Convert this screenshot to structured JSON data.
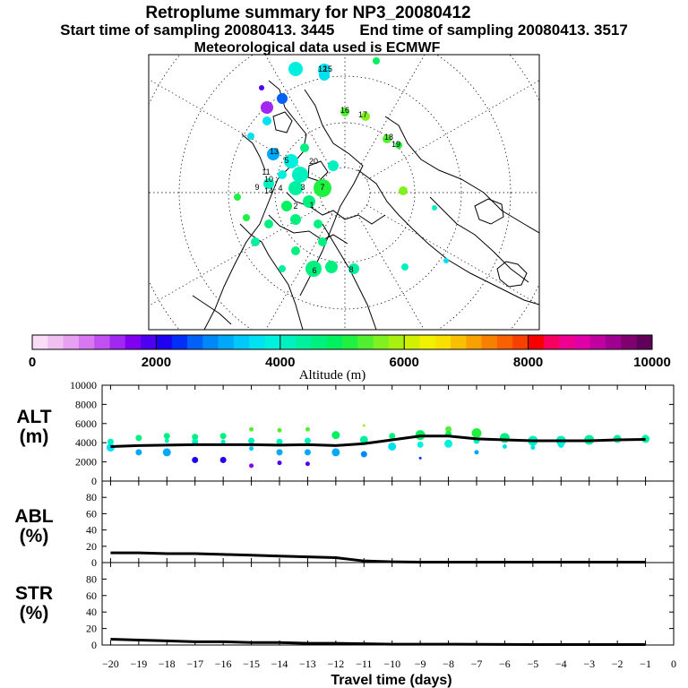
{
  "header": {
    "title": "Retroplume summary for NP3_20080412",
    "start_label": "Start time of sampling 20080413.  3445",
    "end_label": "End time of sampling 20080413.  3517",
    "met_label": "Meteorological data used is ECMWF"
  },
  "colorbar": {
    "title": "Altitude (m)",
    "tick_labels": [
      "0",
      "2000",
      "4000",
      "6000",
      "8000",
      "10000"
    ],
    "min": 0,
    "max": 10000,
    "colors": [
      "#f8dcf8",
      "#f0c0f0",
      "#e8a0f0",
      "#d878f0",
      "#c050f0",
      "#a028f0",
      "#8000f0",
      "#5000f0",
      "#2000f0",
      "#0030f8",
      "#0060f8",
      "#0088f8",
      "#00a8f8",
      "#00c8f8",
      "#00e0f0",
      "#00f0e0",
      "#00f0c0",
      "#00f0a0",
      "#00f080",
      "#00f060",
      "#20f040",
      "#50f030",
      "#80f020",
      "#a8f010",
      "#d0f000",
      "#f0f000",
      "#f8e000",
      "#f8c000",
      "#f8a000",
      "#f88000",
      "#f86000",
      "#f84000",
      "#f80000",
      "#f80060",
      "#f00090",
      "#e000a8",
      "#c000a0",
      "#a00090",
      "#800070",
      "#600058"
    ]
  },
  "map": {
    "trajectory_labels": [
      "12",
      "15",
      "17",
      "20",
      "16",
      "18",
      "19",
      "10",
      "11",
      "13",
      "14",
      "9",
      "7",
      "3",
      "1",
      "2",
      "4",
      "5",
      "6",
      "8"
    ]
  },
  "chart_data": [
    {
      "name": "ALT",
      "type": "line",
      "ylabel": "ALT\n(m)",
      "ylabel_lines": [
        "ALT",
        "(m)"
      ],
      "ylim": [
        0,
        10000
      ],
      "yticks": [
        0,
        2000,
        4000,
        6000,
        8000,
        10000
      ],
      "x": [
        -20,
        -19,
        -18,
        -17,
        -16,
        -15,
        -14,
        -13,
        -12,
        -11,
        -10,
        -9,
        -8,
        -7,
        -6,
        -5,
        -4,
        -3,
        -2,
        -1
      ],
      "median": [
        3600,
        3700,
        3750,
        3800,
        3800,
        3800,
        3750,
        3800,
        3700,
        3900,
        4300,
        4700,
        4700,
        4400,
        4300,
        4200,
        4200,
        4200,
        4300,
        4350
      ],
      "cluster_points": [
        {
          "x": -20,
          "y": 4100,
          "s": 3
        },
        {
          "x": -20,
          "y": 3500,
          "s": 4
        },
        {
          "x": -19,
          "y": 4500,
          "s": 3
        },
        {
          "x": -19,
          "y": 3000,
          "s": 3
        },
        {
          "x": -18,
          "y": 4700,
          "s": 3
        },
        {
          "x": -18,
          "y": 4200,
          "s": 2
        },
        {
          "x": -18,
          "y": 3000,
          "s": 4
        },
        {
          "x": -17,
          "y": 4600,
          "s": 3
        },
        {
          "x": -17,
          "y": 4100,
          "s": 3
        },
        {
          "x": -17,
          "y": 2200,
          "s": 3
        },
        {
          "x": -16,
          "y": 4700,
          "s": 3
        },
        {
          "x": -16,
          "y": 4100,
          "s": 2
        },
        {
          "x": -16,
          "y": 2200,
          "s": 3
        },
        {
          "x": -15,
          "y": 5400,
          "s": 2
        },
        {
          "x": -15,
          "y": 4200,
          "s": 3
        },
        {
          "x": -15,
          "y": 3400,
          "s": 2
        },
        {
          "x": -15,
          "y": 1600,
          "s": 2
        },
        {
          "x": -14,
          "y": 5300,
          "s": 2
        },
        {
          "x": -14,
          "y": 4100,
          "s": 3
        },
        {
          "x": -14,
          "y": 3000,
          "s": 3
        },
        {
          "x": -14,
          "y": 1900,
          "s": 2
        },
        {
          "x": -13,
          "y": 5400,
          "s": 2
        },
        {
          "x": -13,
          "y": 4200,
          "s": 3
        },
        {
          "x": -13,
          "y": 3000,
          "s": 3
        },
        {
          "x": -13,
          "y": 1800,
          "s": 2
        },
        {
          "x": -12,
          "y": 4800,
          "s": 4
        },
        {
          "x": -12,
          "y": 3000,
          "s": 4
        },
        {
          "x": -11,
          "y": 5800,
          "s": 1
        },
        {
          "x": -11,
          "y": 4300,
          "s": 4
        },
        {
          "x": -11,
          "y": 2800,
          "s": 3
        },
        {
          "x": -10,
          "y": 4700,
          "s": 3
        },
        {
          "x": -10,
          "y": 3600,
          "s": 4
        },
        {
          "x": -9,
          "y": 4800,
          "s": 5
        },
        {
          "x": -9,
          "y": 3800,
          "s": 3
        },
        {
          "x": -9,
          "y": 2400,
          "s": 1
        },
        {
          "x": -8,
          "y": 5400,
          "s": 3
        },
        {
          "x": -8,
          "y": 4900,
          "s": 3
        },
        {
          "x": -8,
          "y": 3900,
          "s": 4
        },
        {
          "x": -7,
          "y": 5000,
          "s": 5
        },
        {
          "x": -7,
          "y": 4200,
          "s": 3
        },
        {
          "x": -7,
          "y": 3000,
          "s": 2
        },
        {
          "x": -6,
          "y": 4500,
          "s": 5
        },
        {
          "x": -6,
          "y": 3600,
          "s": 2
        },
        {
          "x": -5,
          "y": 4200,
          "s": 5
        },
        {
          "x": -5,
          "y": 3500,
          "s": 2
        },
        {
          "x": -4,
          "y": 4200,
          "s": 5
        },
        {
          "x": -4,
          "y": 3800,
          "s": 3
        },
        {
          "x": -3,
          "y": 4300,
          "s": 5
        },
        {
          "x": -2,
          "y": 4400,
          "s": 4
        },
        {
          "x": -1,
          "y": 4400,
          "s": 4
        }
      ]
    },
    {
      "name": "ABL",
      "type": "line",
      "ylabel_lines": [
        "ABL",
        "(%)"
      ],
      "ylim": [
        0,
        100
      ],
      "yticks": [
        0,
        20,
        40,
        60,
        80
      ],
      "x": [
        -20,
        -19,
        -18,
        -17,
        -16,
        -15,
        -14,
        -13,
        -12,
        -11,
        -10,
        -9,
        -8,
        -7,
        -6,
        -5,
        -4,
        -3,
        -2,
        -1
      ],
      "values": [
        12,
        12,
        11,
        11,
        10,
        9,
        8,
        7,
        6,
        2,
        1,
        0.5,
        0.5,
        0.5,
        0.5,
        0.5,
        0.5,
        0.5,
        0.5,
        0.5
      ]
    },
    {
      "name": "STR",
      "type": "line",
      "ylabel_lines": [
        "STR",
        "(%)"
      ],
      "ylim": [
        0,
        100
      ],
      "yticks": [
        0,
        20,
        40,
        60,
        80
      ],
      "x": [
        -20,
        -19,
        -18,
        -17,
        -16,
        -15,
        -14,
        -13,
        -12,
        -11,
        -10,
        -9,
        -8,
        -7,
        -6,
        -5,
        -4,
        -3,
        -2,
        -1
      ],
      "values": [
        7,
        6,
        5,
        4,
        4,
        3,
        3,
        2,
        2,
        1.5,
        1,
        1,
        1,
        0.8,
        0.7,
        0.6,
        0.5,
        0.5,
        0.5,
        0.5
      ]
    }
  ],
  "xaxis": {
    "label": "Travel time (days)",
    "tick_labels": [
      "−20",
      "−19",
      "−18",
      "−17",
      "−16",
      "−15",
      "−14",
      "−13",
      "−12",
      "−11",
      "−10",
      "−9",
      "−8",
      "−7",
      "−6",
      "−5",
      "−4",
      "−3",
      "−2",
      "−1",
      "0"
    ],
    "ticks": [
      -20,
      -19,
      -18,
      -17,
      -16,
      -15,
      -14,
      -13,
      -12,
      -11,
      -10,
      -9,
      -8,
      -7,
      -6,
      -5,
      -4,
      -3,
      -2,
      -1,
      0
    ]
  }
}
